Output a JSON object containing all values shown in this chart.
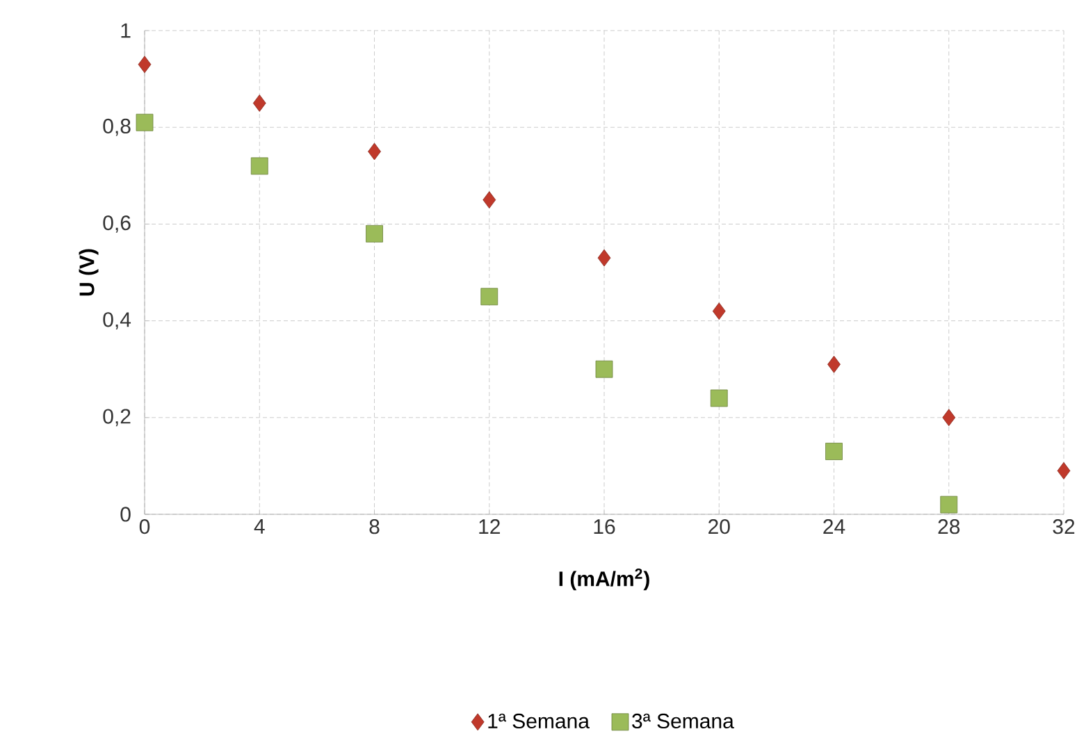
{
  "chart_data": {
    "type": "scatter",
    "xlabel": "I (mA/m$^{2}$)",
    "ylabel": "U (V)",
    "x": [
      0,
      4,
      8,
      12,
      16,
      20,
      24,
      28,
      32
    ],
    "series": [
      {
        "name": "1ª Semana",
        "color": "#c0392b",
        "marker": "diamond",
        "values": [
          0.93,
          0.85,
          0.75,
          0.65,
          0.53,
          0.42,
          0.31,
          0.2,
          0.09
        ]
      },
      {
        "name": "3ª Semana",
        "color": "#9bbb59",
        "marker": "square",
        "values": [
          0.81,
          0.72,
          0.58,
          0.45,
          0.3,
          0.24,
          0.13,
          0.02,
          null
        ]
      }
    ],
    "xlim": [
      0,
      32
    ],
    "xticks": [
      0,
      4,
      8,
      12,
      16,
      20,
      24,
      28,
      32
    ],
    "ylim": [
      0,
      1
    ],
    "yticks": [
      0,
      {
        "value": 0.2,
        "label": "0,2"
      },
      {
        "value": 0.4,
        "label": "0,4"
      },
      {
        "value": 0.6,
        "label": "0,6"
      },
      {
        "value": 0.8,
        "label": "0,8"
      },
      1
    ],
    "grid": true,
    "legend": "bottom"
  }
}
